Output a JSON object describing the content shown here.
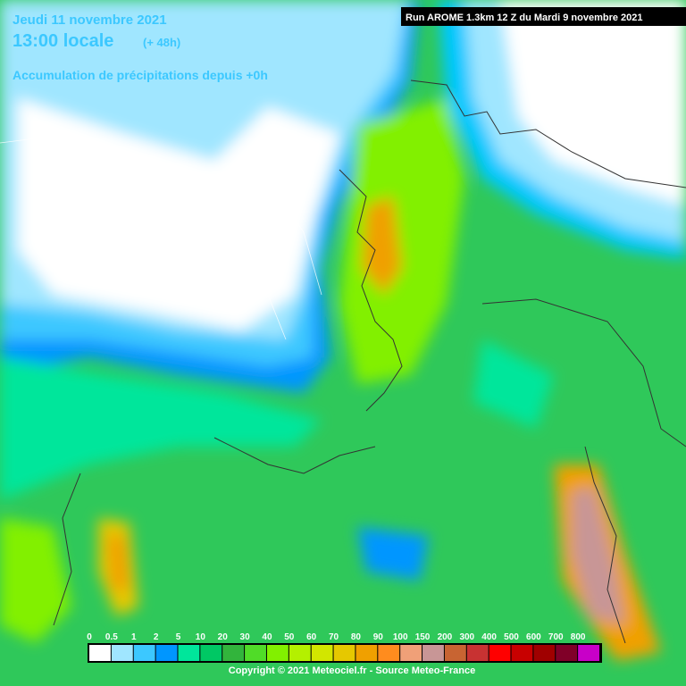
{
  "header": {
    "date": "Jeudi 11 novembre 2021",
    "time": "13:00 locale",
    "offset": "(+ 48h)",
    "subtitle": "Accumulation de précipitations depuis +0h",
    "run": "Run AROME 1.3km 12 Z du Mardi 9 novembre 2021"
  },
  "legend": {
    "levels": [
      0,
      0.5,
      1,
      2,
      5,
      10,
      20,
      30,
      40,
      50,
      60,
      70,
      80,
      90,
      100,
      150,
      200,
      300,
      400,
      500,
      600,
      700,
      800
    ],
    "colors": [
      "#ffffff",
      "#a0e6ff",
      "#3cc8ff",
      "#0096ff",
      "#00e69b",
      "#00c864",
      "#32b43c",
      "#50dc28",
      "#82f000",
      "#b4f000",
      "#d2e600",
      "#e6c800",
      "#f0a000",
      "#ff8c1e",
      "#f0a078",
      "#c89696",
      "#c86432",
      "#c83232",
      "#ff0000",
      "#c80000",
      "#a00000",
      "#800028",
      "#c800c8"
    ]
  },
  "footer": {
    "copyright": "Copyright © 2021 Meteociel.fr - Source Meteo-France"
  }
}
